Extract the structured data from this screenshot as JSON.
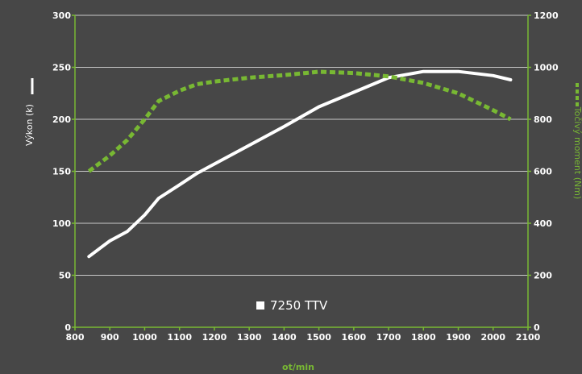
{
  "chart_data": {
    "type": "line",
    "xlabel": "ot/min",
    "y_left_label": "Výkon (k)",
    "y_right_label": "Točivý moment (Nm)",
    "legend_label": "7250 TTV",
    "xlim": [
      800,
      2100
    ],
    "ylim_left": [
      0,
      300
    ],
    "ylim_right": [
      0,
      1200
    ],
    "x_ticks": [
      "800",
      "900",
      "1000",
      "1100",
      "1200",
      "1300",
      "1400",
      "1500",
      "1600",
      "1700",
      "1800",
      "1900",
      "2000",
      "2100"
    ],
    "y_left_ticks": [
      "0",
      "50",
      "100",
      "150",
      "200",
      "250",
      "300"
    ],
    "y_right_ticks": [
      "0",
      "200",
      "400",
      "600",
      "800",
      "1000",
      "1200"
    ],
    "grid": true,
    "colors": {
      "background": "#474747",
      "axis": "#78b833",
      "grid": "#c8c8c8",
      "power_line": "#ffffff",
      "torque_line": "#78b833"
    },
    "series": [
      {
        "name": "Výkon (k)",
        "axis": "left",
        "style": "solid",
        "x": [
          840,
          900,
          950,
          1000,
          1040,
          1100,
          1150,
          1200,
          1300,
          1400,
          1500,
          1600,
          1700,
          1800,
          1900,
          2000,
          2050
        ],
        "values": [
          68,
          83,
          92,
          108,
          124,
          137,
          148,
          157,
          175,
          193,
          212,
          226,
          240,
          246,
          246,
          242,
          238
        ]
      },
      {
        "name": "Točivý moment (Nm)",
        "axis": "right",
        "style": "dashed",
        "x": [
          840,
          900,
          950,
          1000,
          1040,
          1100,
          1150,
          1200,
          1300,
          1400,
          1500,
          1600,
          1700,
          1800,
          1900,
          2000,
          2050
        ],
        "values": [
          600,
          660,
          720,
          800,
          870,
          910,
          935,
          945,
          960,
          970,
          983,
          978,
          965,
          940,
          900,
          835,
          800
        ]
      }
    ]
  }
}
